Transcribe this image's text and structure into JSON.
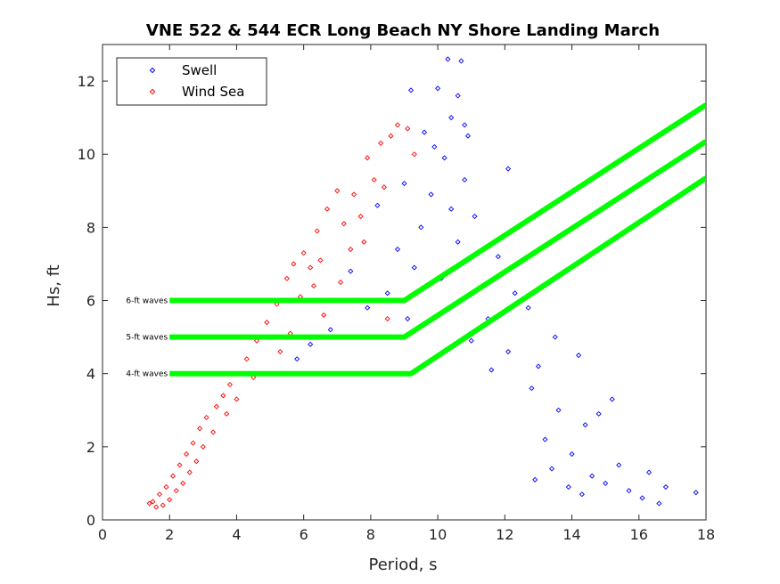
{
  "chart_data": {
    "type": "scatter",
    "title": "VNE 522 & 544 ECR Long Beach NY Shore Landing March",
    "xlabel": "Period, s",
    "ylabel": "Hs, ft",
    "xlim": [
      0,
      18
    ],
    "ylim": [
      0,
      13
    ],
    "xticks": [
      0,
      2,
      4,
      6,
      8,
      10,
      12,
      14,
      16,
      18
    ],
    "yticks": [
      0,
      2,
      4,
      6,
      8,
      10,
      12
    ],
    "grid": false,
    "legend_position": "top-left",
    "series": [
      {
        "name": "Swell",
        "color": "#0000ff",
        "marker": "diamond",
        "points": [
          [
            10.3,
            12.6
          ],
          [
            10.7,
            12.55
          ],
          [
            10.0,
            11.8
          ],
          [
            9.2,
            11.75
          ],
          [
            10.6,
            11.6
          ],
          [
            10.4,
            11.0
          ],
          [
            10.8,
            10.8
          ],
          [
            9.6,
            10.6
          ],
          [
            10.9,
            10.5
          ],
          [
            9.9,
            10.2
          ],
          [
            10.2,
            9.9
          ],
          [
            12.1,
            9.6
          ],
          [
            10.8,
            9.3
          ],
          [
            9.0,
            9.2
          ],
          [
            9.8,
            8.9
          ],
          [
            10.4,
            8.5
          ],
          [
            11.1,
            8.3
          ],
          [
            8.2,
            8.6
          ],
          [
            9.5,
            8.0
          ],
          [
            10.6,
            7.6
          ],
          [
            11.8,
            7.2
          ],
          [
            8.8,
            7.4
          ],
          [
            9.3,
            6.9
          ],
          [
            10.1,
            6.6
          ],
          [
            12.3,
            6.2
          ],
          [
            12.7,
            5.8
          ],
          [
            11.5,
            5.5
          ],
          [
            13.5,
            5.0
          ],
          [
            14.2,
            4.5
          ],
          [
            13.0,
            4.2
          ],
          [
            15.2,
            3.3
          ],
          [
            14.8,
            2.9
          ],
          [
            14.4,
            2.6
          ],
          [
            12.8,
            3.6
          ],
          [
            13.6,
            3.0
          ],
          [
            16.3,
            1.3
          ],
          [
            17.7,
            0.75
          ],
          [
            16.8,
            0.9
          ],
          [
            15.4,
            1.5
          ],
          [
            14.0,
            1.8
          ],
          [
            13.2,
            2.2
          ],
          [
            7.4,
            6.8
          ],
          [
            8.5,
            6.2
          ],
          [
            7.9,
            5.8
          ],
          [
            9.1,
            5.5
          ],
          [
            6.8,
            5.2
          ],
          [
            11.0,
            4.9
          ],
          [
            12.1,
            4.6
          ],
          [
            11.6,
            4.1
          ],
          [
            6.2,
            4.8
          ],
          [
            5.8,
            4.4
          ],
          [
            16.1,
            0.6
          ],
          [
            16.6,
            0.45
          ],
          [
            15.7,
            0.8
          ],
          [
            15.0,
            1.0
          ],
          [
            14.6,
            1.2
          ],
          [
            13.9,
            0.9
          ],
          [
            12.9,
            1.1
          ],
          [
            13.4,
            1.4
          ],
          [
            14.3,
            0.7
          ]
        ]
      },
      {
        "name": "Wind Sea",
        "color": "#ff0000",
        "marker": "diamond",
        "points": [
          [
            8.8,
            10.8
          ],
          [
            8.6,
            10.5
          ],
          [
            9.1,
            10.7
          ],
          [
            8.3,
            10.3
          ],
          [
            9.3,
            10.0
          ],
          [
            7.9,
            9.9
          ],
          [
            8.1,
            9.3
          ],
          [
            7.0,
            9.0
          ],
          [
            7.5,
            8.9
          ],
          [
            8.4,
            9.1
          ],
          [
            6.7,
            8.5
          ],
          [
            7.2,
            8.1
          ],
          [
            6.4,
            7.9
          ],
          [
            7.8,
            7.6
          ],
          [
            6.0,
            7.3
          ],
          [
            5.7,
            7.0
          ],
          [
            5.5,
            6.6
          ],
          [
            6.3,
            6.4
          ],
          [
            5.9,
            6.1
          ],
          [
            7.1,
            6.5
          ],
          [
            5.2,
            5.9
          ],
          [
            6.6,
            5.6
          ],
          [
            4.9,
            5.4
          ],
          [
            5.6,
            5.1
          ],
          [
            4.6,
            4.9
          ],
          [
            5.3,
            4.6
          ],
          [
            4.3,
            4.4
          ],
          [
            6.9,
            5.0
          ],
          [
            8.5,
            5.5
          ],
          [
            9.0,
            6.0
          ],
          [
            4.1,
            4.0
          ],
          [
            3.8,
            3.7
          ],
          [
            4.5,
            3.9
          ],
          [
            3.6,
            3.4
          ],
          [
            4.0,
            3.3
          ],
          [
            3.4,
            3.1
          ],
          [
            3.1,
            2.8
          ],
          [
            3.7,
            2.9
          ],
          [
            2.9,
            2.5
          ],
          [
            3.3,
            2.4
          ],
          [
            2.7,
            2.1
          ],
          [
            3.0,
            2.0
          ],
          [
            2.5,
            1.8
          ],
          [
            2.8,
            1.6
          ],
          [
            2.3,
            1.5
          ],
          [
            2.6,
            1.3
          ],
          [
            2.1,
            1.2
          ],
          [
            2.4,
            1.0
          ],
          [
            1.9,
            0.9
          ],
          [
            2.2,
            0.8
          ],
          [
            1.7,
            0.7
          ],
          [
            2.0,
            0.55
          ],
          [
            1.5,
            0.5
          ],
          [
            1.8,
            0.4
          ],
          [
            1.4,
            0.45
          ],
          [
            1.6,
            0.35
          ],
          [
            6.2,
            6.9
          ],
          [
            6.5,
            7.1
          ],
          [
            7.4,
            7.4
          ],
          [
            7.7,
            8.3
          ]
        ]
      }
    ],
    "reference_lines": [
      {
        "label": "6-ft waves",
        "color": "#00ff00",
        "points": [
          [
            2,
            6.0
          ],
          [
            9.0,
            6.0
          ],
          [
            18,
            11.35
          ]
        ]
      },
      {
        "label": "5-ft waves",
        "color": "#00ff00",
        "points": [
          [
            2,
            5.0
          ],
          [
            9.0,
            5.0
          ],
          [
            18,
            10.35
          ]
        ]
      },
      {
        "label": "4-ft waves",
        "color": "#00ff00",
        "points": [
          [
            2,
            4.0
          ],
          [
            9.2,
            4.0
          ],
          [
            18,
            9.35
          ]
        ]
      }
    ]
  }
}
